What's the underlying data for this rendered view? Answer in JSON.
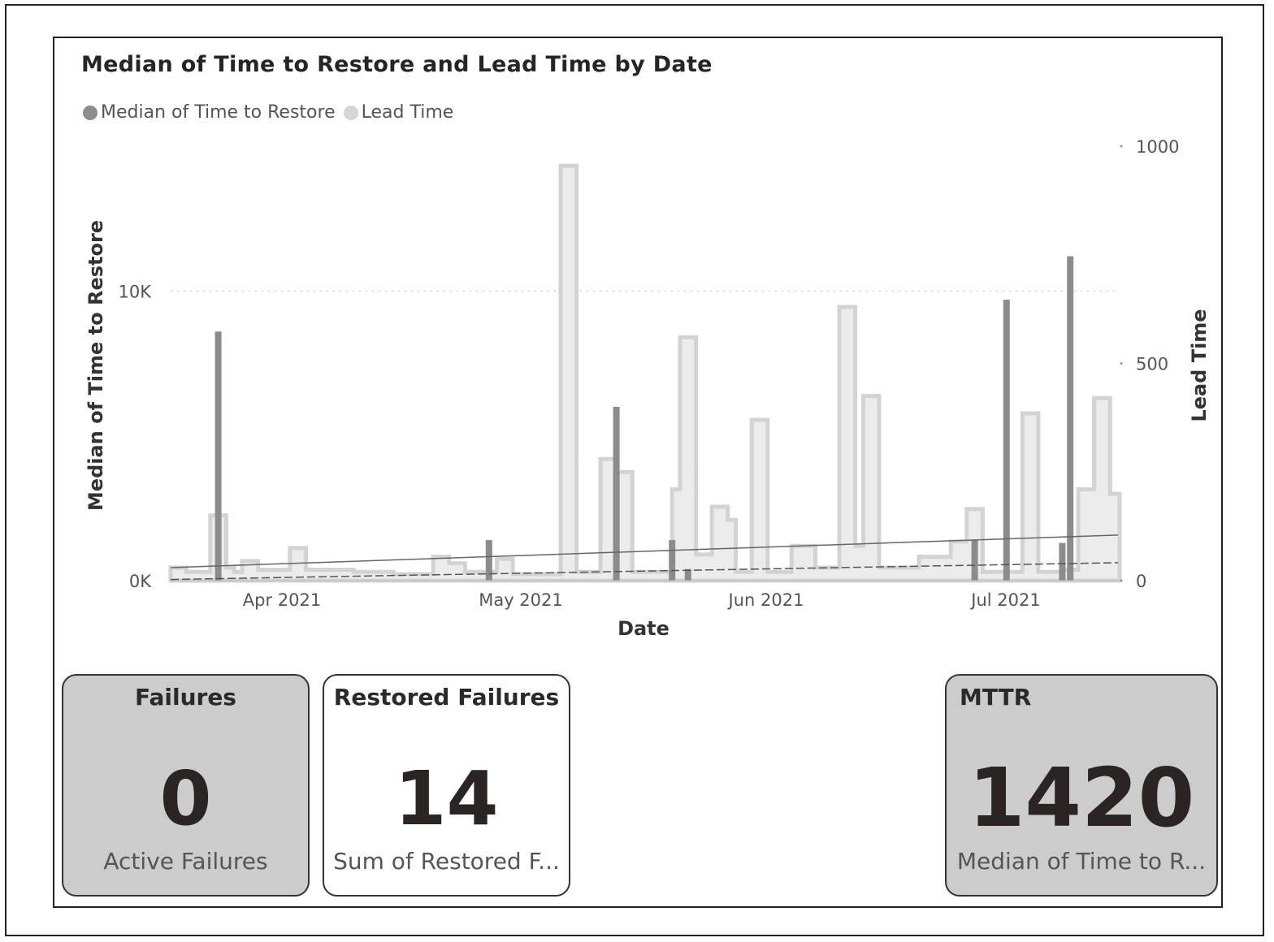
{
  "chart_data": {
    "type": "bar",
    "title": "Median of Time to Restore and Lead Time by Date",
    "xlabel": "Date",
    "ylabel": "Median of Time to Restore",
    "y2label": "Lead Time",
    "x_ticks": [
      "Apr 2021",
      "May 2021",
      "Jun 2021",
      "Jul 2021"
    ],
    "y_ticks": [
      "0K",
      "10K"
    ],
    "y2_ticks": [
      "0",
      "500",
      "1000"
    ],
    "ylim": [
      0,
      15000
    ],
    "y2lim": [
      0,
      1000
    ],
    "grid": true,
    "legend": "top-left",
    "series": [
      {
        "name": "Median of Time to Restore",
        "type": "bar",
        "axis": "y",
        "color": "#8c8c8c",
        "points": [
          {
            "x": "2021-03-24",
            "y": 8600
          },
          {
            "x": "2021-04-27",
            "y": 1400
          },
          {
            "x": "2021-05-13",
            "y": 6000
          },
          {
            "x": "2021-05-13",
            "y": 3800
          },
          {
            "x": "2021-05-20",
            "y": 1400
          },
          {
            "x": "2021-05-22",
            "y": 400
          },
          {
            "x": "2021-06-27",
            "y": 1400
          },
          {
            "x": "2021-07-01",
            "y": 9700
          },
          {
            "x": "2021-07-09",
            "y": 11200
          },
          {
            "x": "2021-07-08",
            "y": 1300
          }
        ]
      },
      {
        "name": "Lead Time",
        "type": "step-area",
        "axis": "y2",
        "color": "#d6d6d6",
        "points": [
          {
            "x": "2021-03-18",
            "y": 30
          },
          {
            "x": "2021-03-20",
            "y": 20
          },
          {
            "x": "2021-03-23",
            "y": 150
          },
          {
            "x": "2021-03-25",
            "y": 30
          },
          {
            "x": "2021-03-26",
            "y": 20
          },
          {
            "x": "2021-03-27",
            "y": 45
          },
          {
            "x": "2021-03-29",
            "y": 25
          },
          {
            "x": "2021-04-02",
            "y": 75
          },
          {
            "x": "2021-04-04",
            "y": 25
          },
          {
            "x": "2021-04-10",
            "y": 20
          },
          {
            "x": "2021-04-15",
            "y": 15
          },
          {
            "x": "2021-04-20",
            "y": 55
          },
          {
            "x": "2021-04-22",
            "y": 40
          },
          {
            "x": "2021-04-24",
            "y": 20
          },
          {
            "x": "2021-04-28",
            "y": 50
          },
          {
            "x": "2021-04-30",
            "y": 15
          },
          {
            "x": "2021-05-06",
            "y": 955
          },
          {
            "x": "2021-05-08",
            "y": 20
          },
          {
            "x": "2021-05-11",
            "y": 280
          },
          {
            "x": "2021-05-13",
            "y": 250
          },
          {
            "x": "2021-05-15",
            "y": 20
          },
          {
            "x": "2021-05-20",
            "y": 210
          },
          {
            "x": "2021-05-21",
            "y": 560
          },
          {
            "x": "2021-05-23",
            "y": 60
          },
          {
            "x": "2021-05-25",
            "y": 170
          },
          {
            "x": "2021-05-27",
            "y": 140
          },
          {
            "x": "2021-05-28",
            "y": 20
          },
          {
            "x": "2021-05-30",
            "y": 370
          },
          {
            "x": "2021-06-01",
            "y": 20
          },
          {
            "x": "2021-06-04",
            "y": 80
          },
          {
            "x": "2021-06-07",
            "y": 30
          },
          {
            "x": "2021-06-10",
            "y": 630
          },
          {
            "x": "2021-06-12",
            "y": 80
          },
          {
            "x": "2021-06-13",
            "y": 425
          },
          {
            "x": "2021-06-15",
            "y": 30
          },
          {
            "x": "2021-06-20",
            "y": 55
          },
          {
            "x": "2021-06-24",
            "y": 90
          },
          {
            "x": "2021-06-26",
            "y": 165
          },
          {
            "x": "2021-06-28",
            "y": 20
          },
          {
            "x": "2021-07-03",
            "y": 385
          },
          {
            "x": "2021-07-05",
            "y": 20
          },
          {
            "x": "2021-07-08",
            "y": 25
          },
          {
            "x": "2021-07-10",
            "y": 210
          },
          {
            "x": "2021-07-12",
            "y": 420
          },
          {
            "x": "2021-07-14",
            "y": 200
          }
        ]
      }
    ],
    "trendlines": [
      {
        "series": "Lead Time",
        "from": {
          "x": "2021-03-18",
          "y": 30
        },
        "to": {
          "x": "2021-07-15",
          "y": 105
        }
      },
      {
        "series": "Median of Time to Restore",
        "from": {
          "x": "2021-03-18",
          "y": 40
        },
        "to": {
          "x": "2021-07-15",
          "y": 620
        }
      }
    ]
  },
  "cards": [
    {
      "title": "Failures",
      "value": "0",
      "label": "Active Failures"
    },
    {
      "title": "Restored Failures",
      "value": "14",
      "label": "Sum of Restored F..."
    },
    {
      "title": "MTTR",
      "value": "1420",
      "label": "Median of Time to R..."
    }
  ],
  "colors": {
    "series_dark": "#8c8c8c",
    "series_light": "#d6d6d6",
    "card_gray": "#cccccc",
    "card_white": "#ffffff"
  }
}
